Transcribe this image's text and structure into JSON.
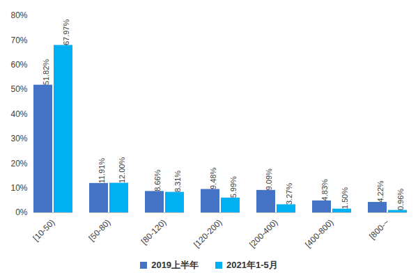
{
  "chart_data": {
    "type": "bar",
    "categories": [
      "[10-50)",
      "[50-80)",
      "[80-120)",
      "[120-200)",
      "[200-400)",
      "[400-800)",
      "[800-~"
    ],
    "series": [
      {
        "name": "2019上半年",
        "color": "#4472C4",
        "values": [
          51.82,
          11.91,
          8.66,
          9.48,
          9.09,
          4.83,
          4.22
        ],
        "value_labels": [
          "51.82%",
          "11.91%",
          "8.66%",
          "9.48%",
          "9.09%",
          "4.83%",
          "4.22%"
        ]
      },
      {
        "name": "2021年1-5月",
        "color": "#00B0F0",
        "values": [
          67.97,
          12.0,
          8.31,
          5.99,
          3.27,
          1.5,
          0.96
        ],
        "value_labels": [
          "67.97%",
          "12.00%",
          "8.31%",
          "5.99%",
          "3.27%",
          "1.50%",
          "0.96%"
        ]
      }
    ],
    "ylim": [
      0,
      80
    ],
    "yticks": [
      {
        "value": 0,
        "label": "0%"
      },
      {
        "value": 10,
        "label": "10%"
      },
      {
        "value": 20,
        "label": "20%"
      },
      {
        "value": 30,
        "label": "30%"
      },
      {
        "value": 40,
        "label": "40%"
      },
      {
        "value": 50,
        "label": "50%"
      },
      {
        "value": 60,
        "label": "60%"
      },
      {
        "value": 70,
        "label": "70%"
      },
      {
        "value": 80,
        "label": "80%"
      }
    ],
    "grid": false,
    "legend": "bottom",
    "data_labels": true
  }
}
